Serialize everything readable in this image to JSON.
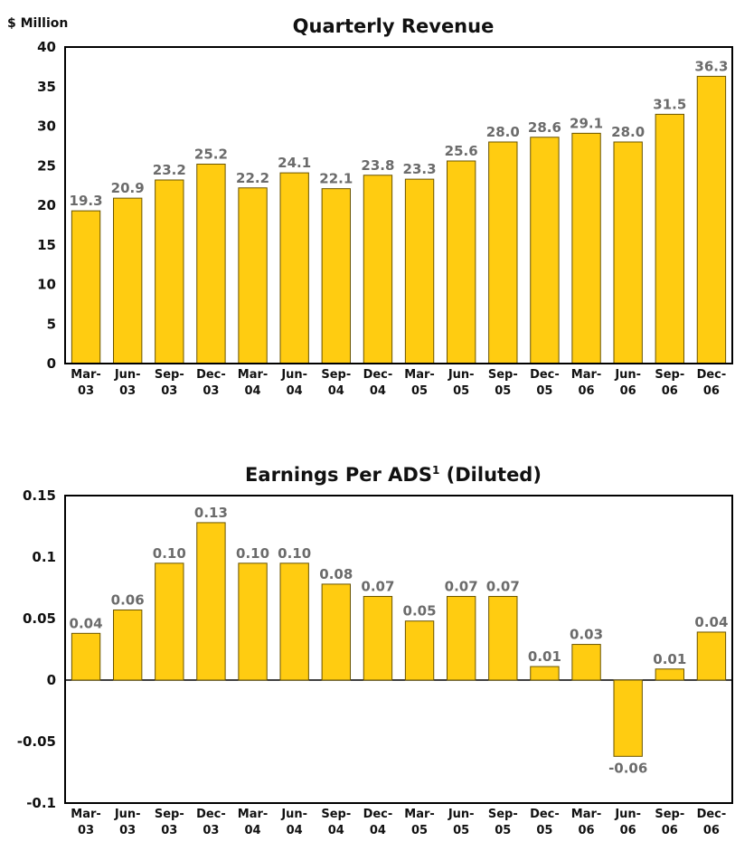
{
  "colors": {
    "bar": "#FFCC11",
    "bar_edge": "#6a5400",
    "frame": "#000000",
    "label": "#6b6b6b"
  },
  "chart_data": [
    {
      "type": "bar",
      "title": "Quarterly Revenue",
      "ylabel": "$ Million",
      "xlabel": "",
      "ylim": [
        0,
        40
      ],
      "yticks": [
        "0",
        "5",
        "10",
        "15",
        "20",
        "25",
        "30",
        "35",
        "40"
      ],
      "categories": [
        [
          "Mar-",
          "03"
        ],
        [
          "Jun-",
          "03"
        ],
        [
          "Sep-",
          "03"
        ],
        [
          "Dec-",
          "03"
        ],
        [
          "Mar-",
          "04"
        ],
        [
          "Jun-",
          "04"
        ],
        [
          "Sep-",
          "04"
        ],
        [
          "Dec-",
          "04"
        ],
        [
          "Mar-",
          "05"
        ],
        [
          "Jun-",
          "05"
        ],
        [
          "Sep-",
          "05"
        ],
        [
          "Dec-",
          "05"
        ],
        [
          "Mar-",
          "06"
        ],
        [
          "Jun-",
          "06"
        ],
        [
          "Sep-",
          "06"
        ],
        [
          "Dec-",
          "06"
        ]
      ],
      "values": [
        19.3,
        20.9,
        23.2,
        25.2,
        22.2,
        24.1,
        22.1,
        23.8,
        23.3,
        25.6,
        28.0,
        28.6,
        29.1,
        28.0,
        31.5,
        36.3
      ],
      "data_labels": [
        "19.3",
        "20.9",
        "23.2",
        "25.2",
        "22.2",
        "24.1",
        "22.1",
        "23.8",
        "23.3",
        "25.6",
        "28.0",
        "28.6",
        "29.1",
        "28.0",
        "31.5",
        "36.3"
      ]
    },
    {
      "type": "bar",
      "title": "Earnings Per ADS",
      "title_superscript": "1",
      "title_suffix": " (Diluted)",
      "ylabel": "",
      "xlabel": "",
      "ylim": [
        -0.1,
        0.15
      ],
      "yticks": [
        "-0.1",
        "-0.05",
        "0",
        "0.05",
        "0.1",
        "0.15"
      ],
      "categories": [
        [
          "Mar-",
          "03"
        ],
        [
          "Jun-",
          "03"
        ],
        [
          "Sep-",
          "03"
        ],
        [
          "Dec-",
          "03"
        ],
        [
          "Mar-",
          "04"
        ],
        [
          "Jun-",
          "04"
        ],
        [
          "Sep-",
          "04"
        ],
        [
          "Dec-",
          "04"
        ],
        [
          "Mar-",
          "05"
        ],
        [
          "Jun-",
          "05"
        ],
        [
          "Sep-",
          "05"
        ],
        [
          "Dec-",
          "05"
        ],
        [
          "Mar-",
          "06"
        ],
        [
          "Jun-",
          "06"
        ],
        [
          "Sep-",
          "06"
        ],
        [
          "Dec-",
          "06"
        ]
      ],
      "values": [
        0.038,
        0.057,
        0.095,
        0.128,
        0.095,
        0.095,
        0.078,
        0.068,
        0.048,
        0.068,
        0.068,
        0.011,
        0.029,
        -0.062,
        0.009,
        0.039
      ],
      "data_labels": [
        "0.04",
        "0.06",
        "0.10",
        "0.13",
        "0.10",
        "0.10",
        "0.08",
        "0.07",
        "0.05",
        "0.07",
        "0.07",
        "0.01",
        "0.03",
        "-0.06",
        "0.01",
        "0.04"
      ]
    }
  ]
}
